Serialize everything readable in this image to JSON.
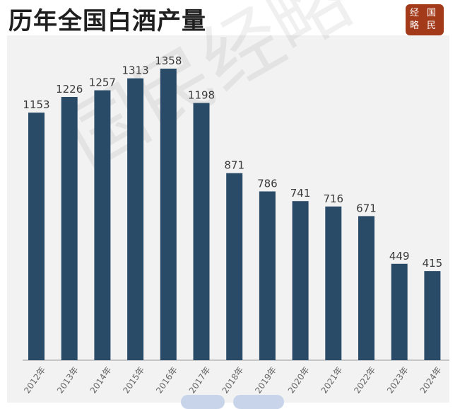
{
  "title": "历年全国白酒产量",
  "seal": {
    "chars": [
      "经",
      "国",
      "略",
      "民"
    ]
  },
  "watermark": "国民经略",
  "chart_data": {
    "type": "bar",
    "title": "历年全国白酒产量",
    "categories": [
      "2012年",
      "2013年",
      "2014年",
      "2015年",
      "2016年",
      "2017年",
      "2018年",
      "2019年",
      "2020年",
      "2021年",
      "2022年",
      "2023年",
      "2024年"
    ],
    "values": [
      1153,
      1226,
      1257,
      1313,
      1358,
      1198,
      871,
      786,
      741,
      716,
      671,
      449,
      415
    ],
    "ylim": [
      0,
      1358
    ],
    "grid": false,
    "legend": "none",
    "bar_color": "#2a4b68"
  }
}
